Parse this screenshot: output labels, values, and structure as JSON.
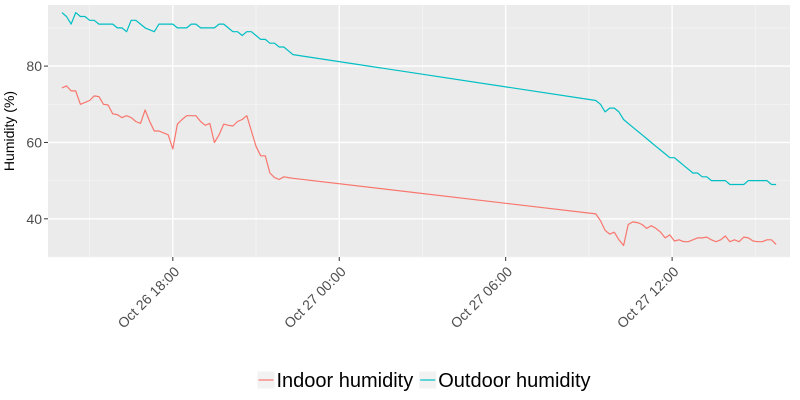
{
  "chart_data": {
    "type": "line",
    "title": "",
    "xlabel": "",
    "ylabel": "Humidity (%)",
    "x_range": [
      "2014-10-26 13:30",
      "2014-10-27 16:15"
    ],
    "ylim": [
      30,
      96
    ],
    "x_ticks": [
      {
        "at": "2014-10-26 18:00",
        "label": "Oct 26 18:00"
      },
      {
        "at": "2014-10-27 00:00",
        "label": "Oct 27 00:00"
      },
      {
        "at": "2014-10-27 06:00",
        "label": "Oct 27 06:00"
      },
      {
        "at": "2014-10-27 12:00",
        "label": "Oct 27 12:00"
      }
    ],
    "y_ticks": [
      40,
      60,
      80
    ],
    "grid": true,
    "legend_position": "bottom",
    "series": [
      {
        "name": "Indoor humidity",
        "color": "#F8766D",
        "points": [
          [
            "2014-10-26 14:00",
            74.3
          ],
          [
            "2014-10-26 14:10",
            74.8
          ],
          [
            "2014-10-26 14:20",
            73.5
          ],
          [
            "2014-10-26 14:30",
            73.5
          ],
          [
            "2014-10-26 14:40",
            70.0
          ],
          [
            "2014-10-26 14:50",
            70.5
          ],
          [
            "2014-10-26 15:00",
            71.0
          ],
          [
            "2014-10-26 15:10",
            72.2
          ],
          [
            "2014-10-26 15:20",
            72.0
          ],
          [
            "2014-10-26 15:30",
            70.0
          ],
          [
            "2014-10-26 15:40",
            69.8
          ],
          [
            "2014-10-26 15:50",
            67.5
          ],
          [
            "2014-10-26 16:00",
            67.3
          ],
          [
            "2014-10-26 16:10",
            66.5
          ],
          [
            "2014-10-26 16:20",
            67.0
          ],
          [
            "2014-10-26 16:30",
            66.5
          ],
          [
            "2014-10-26 16:40",
            65.5
          ],
          [
            "2014-10-26 16:50",
            65.0
          ],
          [
            "2014-10-26 17:00",
            68.5
          ],
          [
            "2014-10-26 17:10",
            65.5
          ],
          [
            "2014-10-26 17:20",
            63.0
          ],
          [
            "2014-10-26 17:30",
            63.0
          ],
          [
            "2014-10-26 17:40",
            62.5
          ],
          [
            "2014-10-26 17:50",
            62.0
          ],
          [
            "2014-10-26 18:00",
            58.3
          ],
          [
            "2014-10-26 18:10",
            64.8
          ],
          [
            "2014-10-26 18:20",
            66.0
          ],
          [
            "2014-10-26 18:30",
            67.0
          ],
          [
            "2014-10-26 18:40",
            67.0
          ],
          [
            "2014-10-26 18:50",
            67.0
          ],
          [
            "2014-10-26 19:00",
            65.5
          ],
          [
            "2014-10-26 19:10",
            64.5
          ],
          [
            "2014-10-26 19:20",
            65.0
          ],
          [
            "2014-10-26 19:30",
            60.0
          ],
          [
            "2014-10-26 19:40",
            62.0
          ],
          [
            "2014-10-26 19:50",
            64.8
          ],
          [
            "2014-10-26 20:00",
            64.5
          ],
          [
            "2014-10-26 20:10",
            64.3
          ],
          [
            "2014-10-26 20:20",
            65.5
          ],
          [
            "2014-10-26 20:30",
            66.0
          ],
          [
            "2014-10-26 20:40",
            67.0
          ],
          [
            "2014-10-26 20:50",
            63.0
          ],
          [
            "2014-10-26 21:00",
            59.0
          ],
          [
            "2014-10-26 21:10",
            56.5
          ],
          [
            "2014-10-26 21:20",
            56.5
          ],
          [
            "2014-10-26 21:30",
            52.0
          ],
          [
            "2014-10-26 21:40",
            50.8
          ],
          [
            "2014-10-26 21:50",
            50.3
          ],
          [
            "2014-10-26 22:00",
            51.0
          ],
          [
            "2014-10-26 22:10",
            50.8
          ],
          [
            "2014-10-26 22:20",
            50.6
          ],
          [
            "2014-10-27 09:15",
            41.3
          ],
          [
            "2014-10-27 09:25",
            39.5
          ],
          [
            "2014-10-27 09:35",
            37.0
          ],
          [
            "2014-10-27 09:45",
            36.0
          ],
          [
            "2014-10-27 09:55",
            36.5
          ],
          [
            "2014-10-27 10:05",
            34.5
          ],
          [
            "2014-10-27 10:15",
            33.0
          ],
          [
            "2014-10-27 10:25",
            38.5
          ],
          [
            "2014-10-27 10:35",
            39.2
          ],
          [
            "2014-10-27 10:45",
            39.0
          ],
          [
            "2014-10-27 10:55",
            38.5
          ],
          [
            "2014-10-27 11:05",
            37.5
          ],
          [
            "2014-10-27 11:15",
            38.2
          ],
          [
            "2014-10-27 11:25",
            37.5
          ],
          [
            "2014-10-27 11:35",
            36.5
          ],
          [
            "2014-10-27 11:45",
            35.0
          ],
          [
            "2014-10-27 11:55",
            35.8
          ],
          [
            "2014-10-27 12:05",
            34.2
          ],
          [
            "2014-10-27 12:15",
            34.5
          ],
          [
            "2014-10-27 12:25",
            34.0
          ],
          [
            "2014-10-27 12:35",
            34.0
          ],
          [
            "2014-10-27 12:45",
            34.5
          ],
          [
            "2014-10-27 12:55",
            35.0
          ],
          [
            "2014-10-27 13:05",
            35.0
          ],
          [
            "2014-10-27 13:15",
            35.2
          ],
          [
            "2014-10-27 13:25",
            34.5
          ],
          [
            "2014-10-27 13:35",
            34.0
          ],
          [
            "2014-10-27 13:45",
            34.5
          ],
          [
            "2014-10-27 13:55",
            35.5
          ],
          [
            "2014-10-27 14:05",
            34.0
          ],
          [
            "2014-10-27 14:15",
            34.5
          ],
          [
            "2014-10-27 14:25",
            34.0
          ],
          [
            "2014-10-27 14:35",
            35.2
          ],
          [
            "2014-10-27 14:45",
            35.0
          ],
          [
            "2014-10-27 14:55",
            34.2
          ],
          [
            "2014-10-27 15:05",
            34.0
          ],
          [
            "2014-10-27 15:15",
            34.0
          ],
          [
            "2014-10-27 15:25",
            34.5
          ],
          [
            "2014-10-27 15:35",
            34.5
          ],
          [
            "2014-10-27 15:45",
            33.3
          ]
        ]
      },
      {
        "name": "Outdoor humidity",
        "color": "#00BFC4",
        "points": [
          [
            "2014-10-26 14:00",
            94.0
          ],
          [
            "2014-10-26 14:10",
            93.0
          ],
          [
            "2014-10-26 14:20",
            91.0
          ],
          [
            "2014-10-26 14:30",
            94.0
          ],
          [
            "2014-10-26 14:40",
            93.0
          ],
          [
            "2014-10-26 14:50",
            93.0
          ],
          [
            "2014-10-26 15:00",
            92.0
          ],
          [
            "2014-10-26 15:10",
            92.0
          ],
          [
            "2014-10-26 15:20",
            91.0
          ],
          [
            "2014-10-26 15:30",
            91.0
          ],
          [
            "2014-10-26 15:40",
            91.0
          ],
          [
            "2014-10-26 15:50",
            91.0
          ],
          [
            "2014-10-26 16:00",
            90.0
          ],
          [
            "2014-10-26 16:10",
            90.0
          ],
          [
            "2014-10-26 16:20",
            89.0
          ],
          [
            "2014-10-26 16:30",
            92.0
          ],
          [
            "2014-10-26 16:40",
            92.0
          ],
          [
            "2014-10-26 16:50",
            91.0
          ],
          [
            "2014-10-26 17:00",
            90.0
          ],
          [
            "2014-10-26 17:10",
            89.5
          ],
          [
            "2014-10-26 17:20",
            89.0
          ],
          [
            "2014-10-26 17:30",
            91.0
          ],
          [
            "2014-10-26 17:40",
            91.0
          ],
          [
            "2014-10-26 17:50",
            91.0
          ],
          [
            "2014-10-26 18:00",
            91.0
          ],
          [
            "2014-10-26 18:10",
            90.0
          ],
          [
            "2014-10-26 18:20",
            90.0
          ],
          [
            "2014-10-26 18:30",
            90.0
          ],
          [
            "2014-10-26 18:40",
            91.0
          ],
          [
            "2014-10-26 18:50",
            91.0
          ],
          [
            "2014-10-26 19:00",
            90.0
          ],
          [
            "2014-10-26 19:10",
            90.0
          ],
          [
            "2014-10-26 19:20",
            90.0
          ],
          [
            "2014-10-26 19:30",
            90.0
          ],
          [
            "2014-10-26 19:40",
            91.0
          ],
          [
            "2014-10-26 19:50",
            91.0
          ],
          [
            "2014-10-26 20:00",
            90.0
          ],
          [
            "2014-10-26 20:10",
            89.0
          ],
          [
            "2014-10-26 20:20",
            89.0
          ],
          [
            "2014-10-26 20:30",
            88.0
          ],
          [
            "2014-10-26 20:40",
            89.0
          ],
          [
            "2014-10-26 20:50",
            89.0
          ],
          [
            "2014-10-26 21:00",
            88.0
          ],
          [
            "2014-10-26 21:10",
            87.0
          ],
          [
            "2014-10-26 21:20",
            87.0
          ],
          [
            "2014-10-26 21:30",
            86.0
          ],
          [
            "2014-10-26 21:40",
            86.0
          ],
          [
            "2014-10-26 21:50",
            85.0
          ],
          [
            "2014-10-26 22:00",
            85.0
          ],
          [
            "2014-10-26 22:10",
            84.0
          ],
          [
            "2014-10-26 22:20",
            83.0
          ],
          [
            "2014-10-27 09:15",
            71.0
          ],
          [
            "2014-10-27 09:25",
            70.0
          ],
          [
            "2014-10-27 09:35",
            68.0
          ],
          [
            "2014-10-27 09:45",
            69.0
          ],
          [
            "2014-10-27 09:55",
            69.0
          ],
          [
            "2014-10-27 10:05",
            68.0
          ],
          [
            "2014-10-27 10:15",
            66.0
          ],
          [
            "2014-10-27 10:25",
            65.0
          ],
          [
            "2014-10-27 10:35",
            64.0
          ],
          [
            "2014-10-27 10:45",
            63.0
          ],
          [
            "2014-10-27 10:55",
            62.0
          ],
          [
            "2014-10-27 11:05",
            61.0
          ],
          [
            "2014-10-27 11:15",
            60.0
          ],
          [
            "2014-10-27 11:25",
            59.0
          ],
          [
            "2014-10-27 11:35",
            58.0
          ],
          [
            "2014-10-27 11:45",
            57.0
          ],
          [
            "2014-10-27 11:55",
            56.0
          ],
          [
            "2014-10-27 12:05",
            56.0
          ],
          [
            "2014-10-27 12:15",
            55.0
          ],
          [
            "2014-10-27 12:25",
            54.0
          ],
          [
            "2014-10-27 12:35",
            53.0
          ],
          [
            "2014-10-27 12:45",
            52.0
          ],
          [
            "2014-10-27 12:55",
            52.0
          ],
          [
            "2014-10-27 13:05",
            51.0
          ],
          [
            "2014-10-27 13:15",
            51.0
          ],
          [
            "2014-10-27 13:25",
            50.0
          ],
          [
            "2014-10-27 13:35",
            50.0
          ],
          [
            "2014-10-27 13:45",
            50.0
          ],
          [
            "2014-10-27 13:55",
            50.0
          ],
          [
            "2014-10-27 14:05",
            49.0
          ],
          [
            "2014-10-27 14:15",
            49.0
          ],
          [
            "2014-10-27 14:25",
            49.0
          ],
          [
            "2014-10-27 14:35",
            49.0
          ],
          [
            "2014-10-27 14:45",
            50.0
          ],
          [
            "2014-10-27 14:55",
            50.0
          ],
          [
            "2014-10-27 15:05",
            50.0
          ],
          [
            "2014-10-27 15:15",
            50.0
          ],
          [
            "2014-10-27 15:25",
            50.0
          ],
          [
            "2014-10-27 15:35",
            49.0
          ],
          [
            "2014-10-27 15:45",
            49.0
          ]
        ]
      }
    ]
  }
}
